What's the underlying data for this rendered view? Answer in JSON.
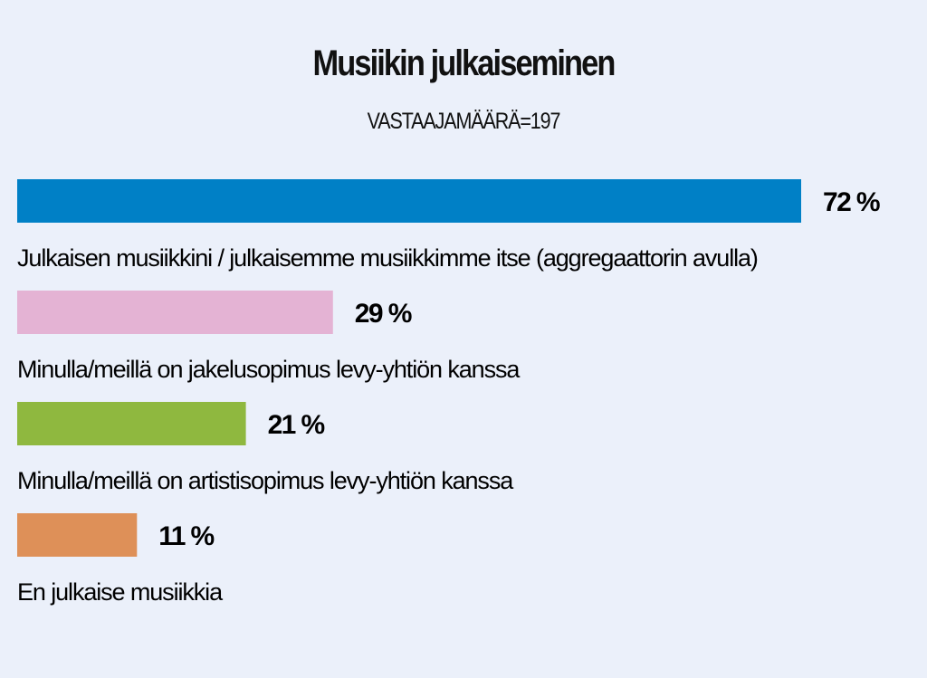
{
  "chart_data": {
    "type": "bar",
    "orientation": "horizontal",
    "title": "Musiikin julkaiseminen",
    "subtitle": "VASTAAJAMÄÄRÄ=197",
    "categories": [
      "Julkaisen musiikkini / julkaisemme musiikkimme itse (aggregaattorin avulla)",
      "Minulla/meillä on jakelusopimus levy-yhtiön kanssa",
      "Minulla/meillä on artistisopimus levy-yhtiön kanssa",
      "En julkaise musiikkia"
    ],
    "values": [
      72,
      29,
      21,
      11
    ],
    "value_labels": [
      "72 %",
      "29 %",
      "21 %",
      "11 %"
    ],
    "colors": [
      "#0080c6",
      "#e4b3d4",
      "#8fb83f",
      "#de9058"
    ],
    "xlim": [
      0,
      72
    ],
    "grid": false
  }
}
